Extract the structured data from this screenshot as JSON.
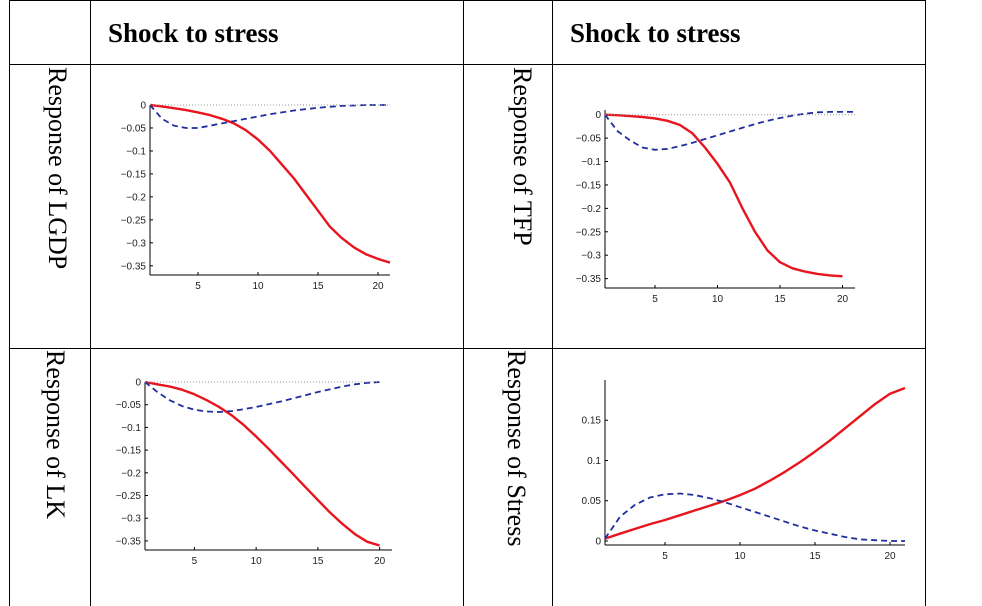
{
  "table": {
    "headers": [
      "Shock to stress",
      "Shock to stress"
    ],
    "row_labels": [
      "Response of LGDP",
      "Response of TFP",
      "Response of LK",
      "Response of Stress"
    ]
  },
  "colors": {
    "solid_line": "#e8141e",
    "dashed_line": "#1f2fa0",
    "zero_line": "#999999"
  },
  "chart_data": [
    {
      "type": "line",
      "title": "",
      "xlabel": "",
      "ylabel": "",
      "xlim": [
        1,
        21
      ],
      "ylim": [
        -0.37,
        0.0
      ],
      "xticks": [
        5,
        10,
        15,
        20
      ],
      "yticks": [
        0,
        -0.05,
        -0.1,
        -0.15,
        -0.2,
        -0.25,
        -0.3,
        -0.35
      ],
      "ytick_labels": [
        "0",
        "−0.05",
        "−0.1",
        "−0.15",
        "−0.2",
        "−0.25",
        "−0.3",
        "−0.35"
      ],
      "series": [
        {
          "style": "solid",
          "x": [
            1,
            2,
            3,
            4,
            5,
            6,
            7,
            8,
            9,
            10,
            11,
            12,
            13,
            14,
            15,
            16,
            17,
            18,
            19,
            20,
            21
          ],
          "y": [
            0,
            -0.003,
            -0.007,
            -0.011,
            -0.016,
            -0.022,
            -0.03,
            -0.04,
            -0.055,
            -0.075,
            -0.1,
            -0.13,
            -0.16,
            -0.195,
            -0.23,
            -0.265,
            -0.29,
            -0.31,
            -0.325,
            -0.335,
            -0.343
          ]
        },
        {
          "style": "dashed",
          "x": [
            1,
            2,
            3,
            4,
            5,
            6,
            7,
            8,
            9,
            10,
            11,
            12,
            13,
            14,
            15,
            16,
            17,
            18,
            19,
            20,
            21
          ],
          "y": [
            0,
            -0.03,
            -0.045,
            -0.05,
            -0.05,
            -0.045,
            -0.04,
            -0.035,
            -0.03,
            -0.025,
            -0.02,
            -0.016,
            -0.012,
            -0.009,
            -0.006,
            -0.004,
            -0.002,
            -0.001,
            0,
            0,
            0
          ]
        },
        {
          "style": "dotted",
          "x": [
            1,
            21
          ],
          "y": [
            0,
            0
          ]
        }
      ]
    },
    {
      "type": "line",
      "title": "",
      "xlabel": "",
      "ylabel": "",
      "xlim": [
        1,
        21
      ],
      "ylim": [
        -0.37,
        0.01
      ],
      "xticks": [
        5,
        10,
        15,
        20
      ],
      "yticks": [
        0,
        -0.05,
        -0.1,
        -0.15,
        -0.2,
        -0.25,
        -0.3,
        -0.35
      ],
      "ytick_labels": [
        "0",
        "−0.05",
        "−0.1",
        "−0.15",
        "−0.2",
        "−0.25",
        "−0.3",
        "−0.35"
      ],
      "series": [
        {
          "style": "solid",
          "x": [
            1,
            2,
            3,
            4,
            5,
            6,
            7,
            8,
            9,
            10,
            11,
            12,
            13,
            14,
            15,
            16,
            17,
            18,
            19,
            20
          ],
          "y": [
            0,
            -0.001,
            -0.003,
            -0.005,
            -0.008,
            -0.013,
            -0.022,
            -0.04,
            -0.07,
            -0.105,
            -0.145,
            -0.2,
            -0.25,
            -0.29,
            -0.315,
            -0.328,
            -0.335,
            -0.34,
            -0.343,
            -0.345
          ]
        },
        {
          "style": "dashed",
          "x": [
            1,
            2,
            3,
            4,
            5,
            6,
            7,
            8,
            9,
            10,
            11,
            12,
            13,
            14,
            15,
            16,
            17,
            18,
            19,
            20,
            21
          ],
          "y": [
            0,
            -0.035,
            -0.055,
            -0.07,
            -0.075,
            -0.073,
            -0.067,
            -0.06,
            -0.052,
            -0.044,
            -0.036,
            -0.028,
            -0.02,
            -0.013,
            -0.007,
            -0.002,
            0.002,
            0.005,
            0.006,
            0.006,
            0.006
          ]
        },
        {
          "style": "dotted",
          "x": [
            1,
            21
          ],
          "y": [
            0,
            0
          ]
        }
      ]
    },
    {
      "type": "line",
      "title": "",
      "xlabel": "",
      "ylabel": "",
      "xlim": [
        1,
        21
      ],
      "ylim": [
        -0.37,
        0.0
      ],
      "xticks": [
        5,
        10,
        15,
        20
      ],
      "yticks": [
        0,
        -0.05,
        -0.1,
        -0.15,
        -0.2,
        -0.25,
        -0.3,
        -0.35
      ],
      "ytick_labels": [
        "0",
        "−0.05",
        "−0.1",
        "−0.15",
        "−0.2",
        "−0.25",
        "−0.3",
        "−0.35"
      ],
      "series": [
        {
          "style": "solid",
          "x": [
            1,
            2,
            3,
            4,
            5,
            6,
            7,
            8,
            9,
            10,
            11,
            12,
            13,
            14,
            15,
            16,
            17,
            18,
            19,
            20
          ],
          "y": [
            0,
            -0.005,
            -0.01,
            -0.017,
            -0.027,
            -0.04,
            -0.055,
            -0.073,
            -0.095,
            -0.12,
            -0.147,
            -0.175,
            -0.203,
            -0.232,
            -0.26,
            -0.288,
            -0.313,
            -0.335,
            -0.352,
            -0.36
          ]
        },
        {
          "style": "dashed",
          "x": [
            1,
            2,
            3,
            4,
            5,
            6,
            7,
            8,
            9,
            10,
            11,
            12,
            13,
            14,
            15,
            16,
            17,
            18,
            19,
            20
          ],
          "y": [
            0,
            -0.022,
            -0.04,
            -0.053,
            -0.061,
            -0.065,
            -0.066,
            -0.064,
            -0.06,
            -0.055,
            -0.049,
            -0.043,
            -0.036,
            -0.029,
            -0.022,
            -0.016,
            -0.01,
            -0.005,
            -0.002,
            0
          ]
        },
        {
          "style": "dotted",
          "x": [
            1,
            20
          ],
          "y": [
            0,
            0
          ]
        }
      ]
    },
    {
      "type": "line",
      "title": "",
      "xlabel": "",
      "ylabel": "",
      "xlim": [
        1,
        21
      ],
      "ylim": [
        -0.005,
        0.2
      ],
      "xticks": [
        5,
        10,
        15,
        20
      ],
      "yticks": [
        0,
        0.05,
        0.1,
        0.15
      ],
      "ytick_labels": [
        "0",
        "0.05",
        "0.1",
        "0.15"
      ],
      "series": [
        {
          "style": "solid",
          "x": [
            1,
            2,
            3,
            4,
            5,
            6,
            7,
            8,
            9,
            10,
            11,
            12,
            13,
            14,
            15,
            16,
            17,
            18,
            19,
            20,
            21
          ],
          "y": [
            0.003,
            0.009,
            0.015,
            0.021,
            0.026,
            0.032,
            0.038,
            0.044,
            0.05,
            0.057,
            0.065,
            0.075,
            0.086,
            0.098,
            0.111,
            0.125,
            0.14,
            0.155,
            0.17,
            0.183,
            0.19
          ]
        },
        {
          "style": "dashed",
          "x": [
            1,
            2,
            3,
            4,
            5,
            6,
            7,
            8,
            9,
            10,
            11,
            12,
            13,
            14,
            15,
            16,
            17,
            18,
            19,
            20,
            21
          ],
          "y": [
            0.003,
            0.03,
            0.045,
            0.054,
            0.058,
            0.059,
            0.057,
            0.053,
            0.048,
            0.042,
            0.036,
            0.03,
            0.024,
            0.018,
            0.013,
            0.009,
            0.005,
            0.002,
            0.001,
            0,
            0
          ]
        }
      ]
    }
  ]
}
